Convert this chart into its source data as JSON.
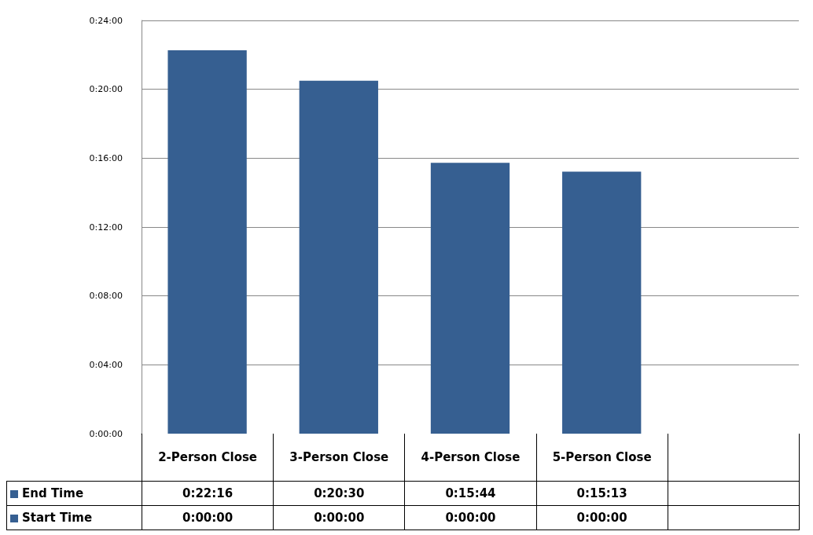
{
  "chart_data": {
    "type": "bar",
    "stacked": true,
    "categories": [
      "2-Person Close",
      "3-Person Close",
      "4-Person Close",
      "5-Person Close",
      null
    ],
    "series": [
      {
        "name": "Start Time",
        "color": "#365f91",
        "values": [
          0,
          0,
          0,
          0,
          null
        ],
        "value_labels": [
          "0:00:00",
          "0:00:00",
          "0:00:00",
          "0:00:00",
          null
        ]
      },
      {
        "name": "End Time",
        "color": "#365f91",
        "values": [
          22.2667,
          20.5,
          15.7333,
          15.2167,
          null
        ],
        "value_labels": [
          "0:22:16",
          "0:20:30",
          "0:15:44",
          "0:15:13",
          null
        ]
      }
    ],
    "ylim": [
      0,
      24
    ],
    "yticks": [
      {
        "value": 0,
        "label": "0:00:00"
      },
      {
        "value": 4,
        "label": "0:04:00"
      },
      {
        "value": 8,
        "label": "0:08:00"
      },
      {
        "value": 12,
        "label": "0:12:00"
      },
      {
        "value": 16,
        "label": "0:16:00"
      },
      {
        "value": 20,
        "label": "0:20:00"
      },
      {
        "value": 24,
        "label": "0:24:00"
      }
    ],
    "grid": "y"
  }
}
